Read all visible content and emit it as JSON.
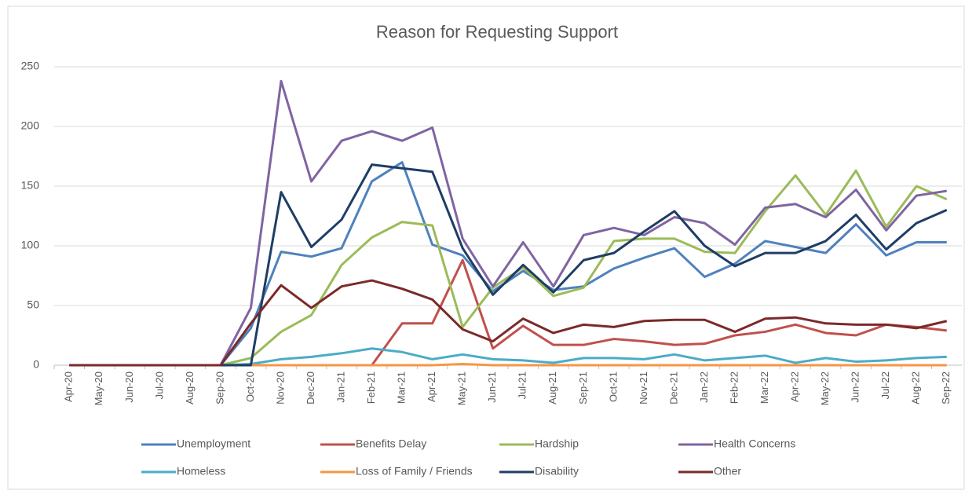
{
  "chart_data": {
    "type": "line",
    "title": "Reason for Requesting Support",
    "categories": [
      "Apr-20",
      "May-20",
      "Jun-20",
      "Jul-20",
      "Aug-20",
      "Sep-20",
      "Oct-20",
      "Nov-20",
      "Dec-20",
      "Jan-21",
      "Feb-21",
      "Mar-21",
      "Apr-21",
      "May-21",
      "Jun-21",
      "Jul-21",
      "Aug-21",
      "Sep-21",
      "Oct-21",
      "Nov-21",
      "Dec-21",
      "Jan-22",
      "Feb-22",
      "Mar-22",
      "Apr-22",
      "May-22",
      "Jun-22",
      "Jul-22",
      "Aug-22",
      "Sep-22"
    ],
    "series": [
      {
        "name": "Unemployment",
        "color": "#4f81bd",
        "values": [
          0,
          0,
          0,
          0,
          0,
          0,
          31,
          95,
          91,
          98,
          154,
          170,
          101,
          92,
          62,
          79,
          63,
          66,
          81,
          90,
          98,
          74,
          85,
          104,
          99,
          94,
          118,
          92,
          103,
          103
        ]
      },
      {
        "name": "Benefits Delay",
        "color": "#c0504d",
        "values": [
          0,
          0,
          0,
          0,
          0,
          0,
          0,
          0,
          0,
          0,
          0,
          35,
          35,
          88,
          14,
          33,
          17,
          17,
          22,
          20,
          17,
          18,
          25,
          28,
          34,
          27,
          25,
          34,
          32,
          29
        ]
      },
      {
        "name": "Hardship",
        "color": "#9bbb59",
        "values": [
          0,
          0,
          0,
          0,
          0,
          0,
          6,
          28,
          42,
          84,
          107,
          120,
          117,
          32,
          65,
          82,
          58,
          65,
          104,
          106,
          106,
          95,
          94,
          129,
          159,
          126,
          163,
          116,
          150,
          139
        ]
      },
      {
        "name": "Health Concerns",
        "color": "#8064a2",
        "values": [
          0,
          0,
          0,
          0,
          0,
          0,
          48,
          238,
          154,
          188,
          196,
          188,
          199,
          106,
          66,
          103,
          66,
          109,
          115,
          109,
          124,
          119,
          101,
          132,
          135,
          124,
          147,
          113,
          142,
          146
        ]
      },
      {
        "name": "Homeless",
        "color": "#4bacc6",
        "values": [
          0,
          0,
          0,
          0,
          0,
          0,
          1,
          5,
          7,
          10,
          14,
          11,
          5,
          9,
          5,
          4,
          2,
          6,
          6,
          5,
          9,
          4,
          6,
          8,
          2,
          6,
          3,
          4,
          6,
          7
        ]
      },
      {
        "name": "Loss of Family / Friends",
        "color": "#f79646",
        "values": [
          0,
          0,
          0,
          0,
          0,
          0,
          0,
          0,
          0,
          0,
          0,
          0,
          0,
          1,
          0,
          0,
          0,
          0,
          0,
          0,
          0,
          0,
          0,
          0,
          0,
          0,
          0,
          0,
          0,
          0
        ]
      },
      {
        "name": "Disability",
        "color": "#1f3d66",
        "values": [
          0,
          0,
          0,
          0,
          0,
          0,
          0,
          145,
          99,
          122,
          168,
          165,
          162,
          98,
          59,
          84,
          61,
          88,
          94,
          112,
          129,
          100,
          83,
          94,
          94,
          104,
          126,
          97,
          119,
          130
        ]
      },
      {
        "name": "Other",
        "color": "#7b2a2a",
        "values": [
          0,
          0,
          0,
          0,
          0,
          0,
          35,
          67,
          48,
          66,
          71,
          64,
          55,
          30,
          20,
          39,
          27,
          34,
          32,
          37,
          38,
          38,
          28,
          39,
          40,
          35,
          34,
          34,
          31,
          37
        ]
      }
    ],
    "ylim": [
      0,
      250
    ],
    "yticks": [
      0,
      50,
      100,
      150,
      200,
      250
    ],
    "grid": true
  }
}
